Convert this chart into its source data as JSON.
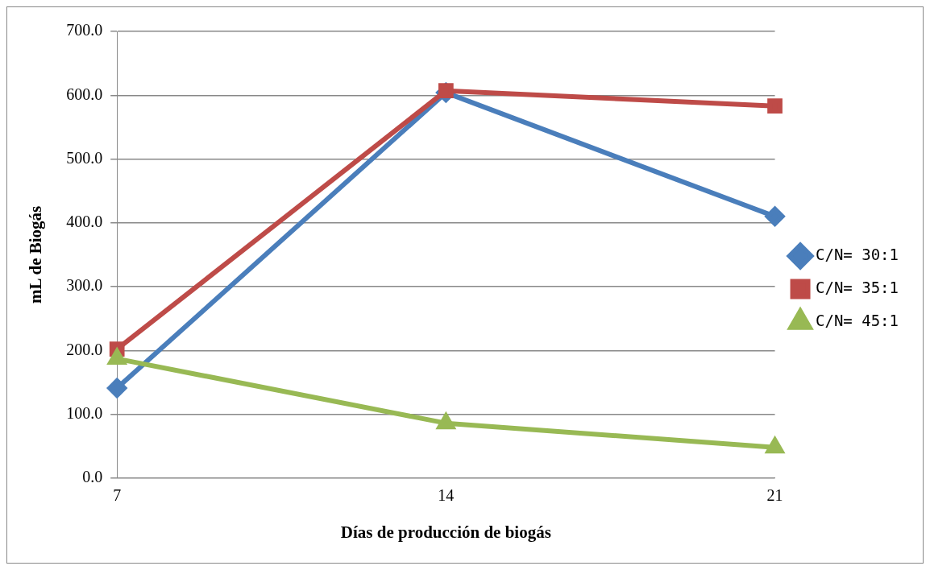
{
  "chart_data": {
    "type": "line",
    "xlabel": "Días de producción de biogás",
    "ylabel": "mL de Biogás",
    "categories": [
      "7",
      "14",
      "21"
    ],
    "series": [
      {
        "name": "C/N= 30:1",
        "color": "#4a7ebb",
        "marker": "diamond",
        "values": [
          141,
          604,
          410
        ]
      },
      {
        "name": "C/N= 35:1",
        "color": "#be4b48",
        "marker": "square",
        "values": [
          202,
          607,
          583
        ]
      },
      {
        "name": "C/N= 45:1",
        "color": "#98b954",
        "marker": "triangle",
        "values": [
          187,
          86,
          48
        ]
      }
    ],
    "ylim": [
      0,
      700
    ],
    "yticks": [
      {
        "value": 0,
        "label": "0.0"
      },
      {
        "value": 100,
        "label": "100.0"
      },
      {
        "value": 200,
        "label": "200.0"
      },
      {
        "value": 300,
        "label": "300.0"
      },
      {
        "value": 400,
        "label": "400.0"
      },
      {
        "value": 500,
        "label": "500.0"
      },
      {
        "value": 600,
        "label": "600.0"
      },
      {
        "value": 700,
        "label": "700.0"
      }
    ],
    "grid": "y",
    "legend": "right",
    "line_style": "solid"
  }
}
